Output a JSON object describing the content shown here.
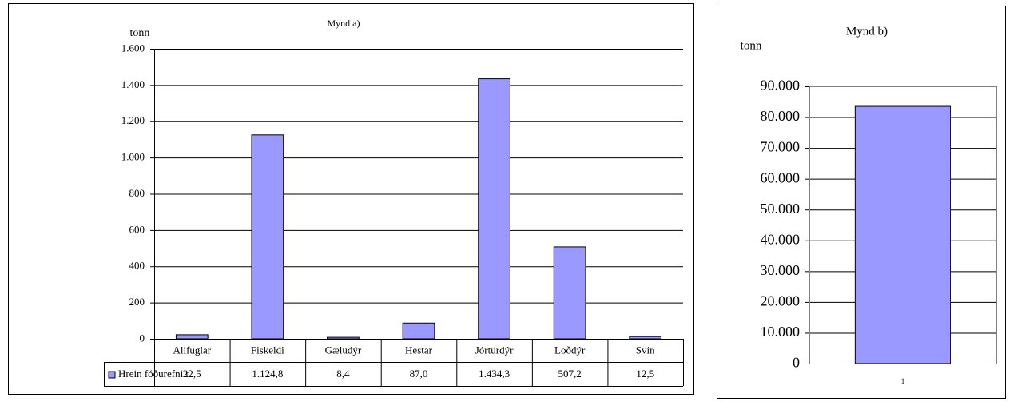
{
  "chart_data": [
    {
      "type": "bar",
      "title": "Mynd a)",
      "y_label": "tonn",
      "categories": [
        "Alifuglar",
        "Fiskeldi",
        "Gæludýr",
        "Hestar",
        "Jórturdýr",
        "Loðdýr",
        "Svín"
      ],
      "series": [
        {
          "name": "Hrein fóðurefni t",
          "color": "#9999ff",
          "values": [
            22.5,
            1124.8,
            8.4,
            87.0,
            1434.3,
            507.2,
            12.5
          ],
          "value_labels": [
            "22,5",
            "1.124,8",
            "8,4",
            "87,0",
            "1.434,3",
            "507,2",
            "12,5"
          ]
        }
      ],
      "ylim": [
        0,
        1600
      ],
      "yticks": [
        0,
        200,
        400,
        600,
        800,
        {
          "value": 1000,
          "label": "1.000"
        },
        {
          "value": 1200,
          "label": "1.200"
        },
        {
          "value": 1400,
          "label": "1.400"
        },
        {
          "value": 1600,
          "label": "1.600"
        }
      ],
      "grid": true,
      "data_table": true
    },
    {
      "type": "bar",
      "title": "Mynd b)",
      "y_label": "tonn",
      "categories": [
        "1"
      ],
      "values": [
        83500
      ],
      "color": "#9999ff",
      "ylim": [
        0,
        90000
      ],
      "yticks": [
        0,
        {
          "value": 10000,
          "label": "10.000"
        },
        {
          "value": 20000,
          "label": "20.000"
        },
        {
          "value": 30000,
          "label": "30.000"
        },
        {
          "value": 40000,
          "label": "40.000"
        },
        {
          "value": 50000,
          "label": "50.000"
        },
        {
          "value": 60000,
          "label": "60.000"
        },
        {
          "value": 70000,
          "label": "70.000"
        },
        {
          "value": 80000,
          "label": "80.000"
        },
        {
          "value": 90000,
          "label": "90.000"
        }
      ],
      "grid": true,
      "data_table": false
    }
  ]
}
